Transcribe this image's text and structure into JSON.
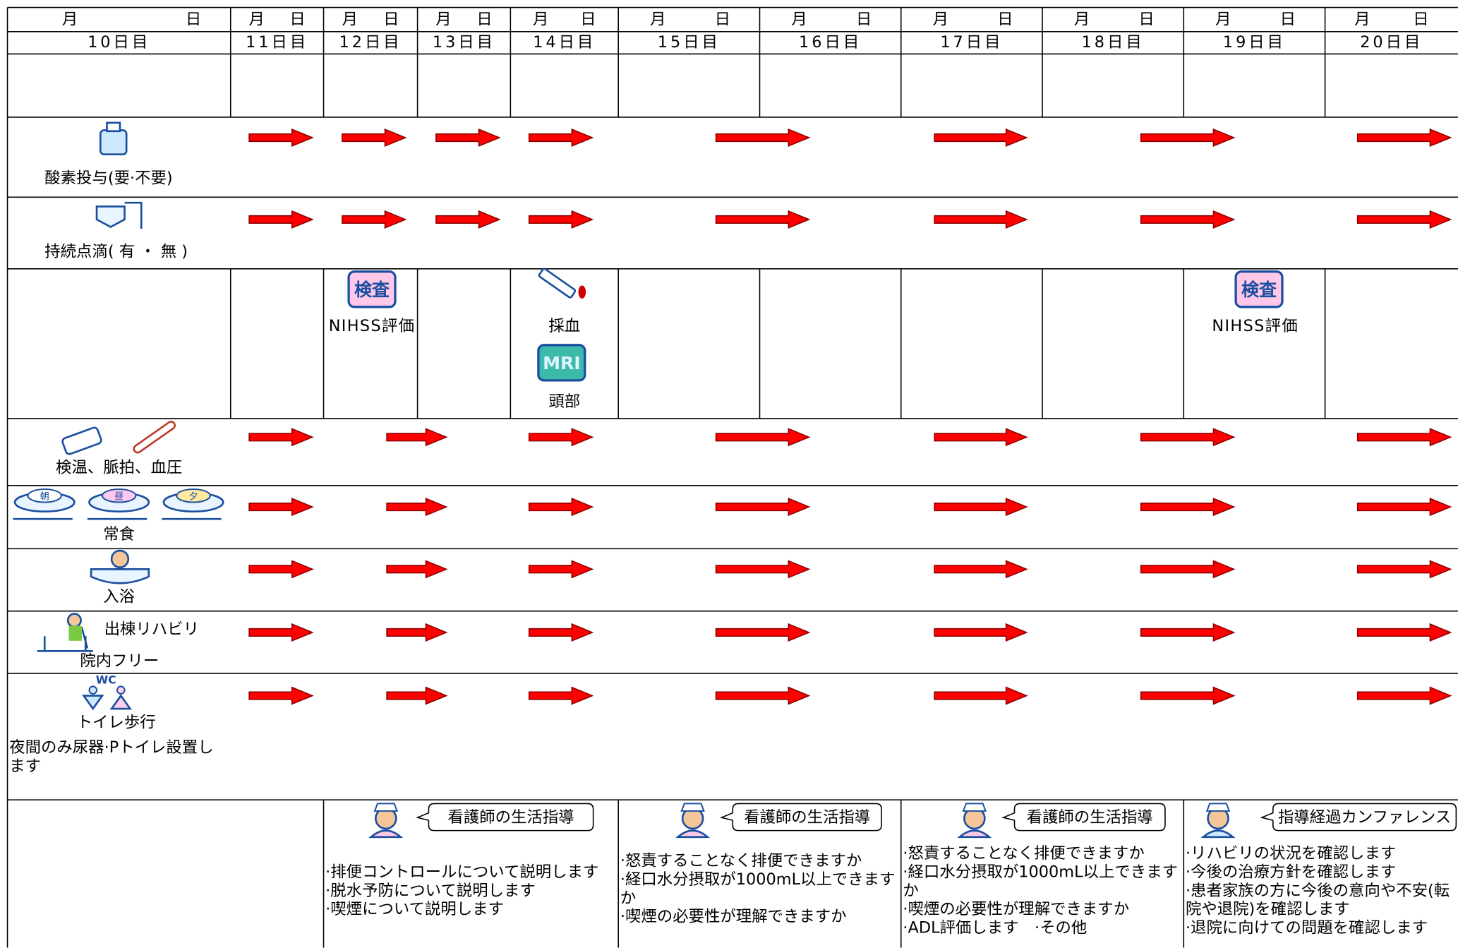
{
  "header": {
    "month": "月",
    "day": "日",
    "days": [
      "10日目",
      "11日目",
      "12日目",
      "13日目",
      "14日目",
      "15日目",
      "16日目",
      "17日目",
      "18日目",
      "19日目",
      "20日目"
    ]
  },
  "rows": {
    "oxygen": "酸素投与(要·不要)",
    "iv_drip": "持続点滴( 有 ・ 無 )",
    "tests": {
      "exam_badge": "検査",
      "nihss": "NIHSS評価",
      "blood": "採血",
      "mri_badge": "MRI",
      "head": "頭部"
    },
    "vitals": "検温、脈拍、血圧",
    "meal": {
      "plates": [
        "朝",
        "昼",
        "夕"
      ],
      "label": "常食"
    },
    "bath": "入浴",
    "rehab": {
      "label": "出棟リハビリ",
      "level": "院内フリー"
    },
    "toilet": {
      "wc": "WC",
      "label": "トイレ歩行",
      "note": "夜間のみ尿器·Pトイレ設置します"
    }
  },
  "guidance": [
    {
      "title": "看護師の生活指導",
      "items": [
        "·排便コントロールについて説明します",
        "·脱水予防について説明します",
        "·喫煙について説明します"
      ]
    },
    {
      "title": "看護師の生活指導",
      "items": [
        "·怒責することなく排便できますか",
        "·経口水分摂取が1000mL以上できますか",
        "·喫煙の必要性が理解できますか"
      ]
    },
    {
      "title": "看護師の生活指導",
      "items": [
        "·怒責することなく排便できますか",
        "·経口水分摂取が1000mL以上できますか",
        "·喫煙の必要性が理解できますか",
        "·ADL評価します　·その他"
      ]
    },
    {
      "title": "指導経過カンファレンス",
      "items": [
        "·リハビリの状況を確認します",
        "·今後の治療方針を確認します",
        "·患者家族の方に今後の意向や不安(転院や退院)を確認します",
        "·退院に向けての問題を確認します"
      ]
    }
  ]
}
